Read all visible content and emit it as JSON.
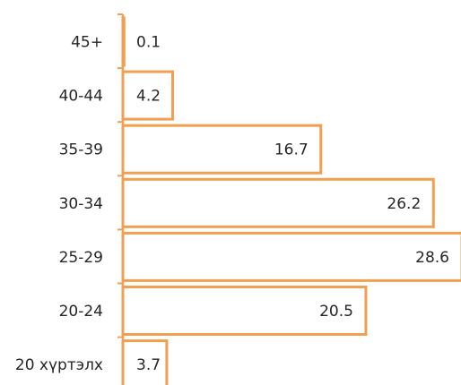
{
  "chart_data": {
    "type": "bar",
    "orientation": "horizontal",
    "categories": [
      "45+",
      "40-44",
      "35-39",
      "30-34",
      "25-29",
      "20-24",
      "20 хүртэлх"
    ],
    "values": [
      0.1,
      4.2,
      16.7,
      26.2,
      28.6,
      20.5,
      3.7
    ],
    "value_labels": [
      "0.1",
      "4.2",
      "16.7",
      "26.2",
      "28.6",
      "20.5",
      "3.7"
    ],
    "title": "",
    "xlabel": "",
    "ylabel": "",
    "xlim": [
      0,
      28.6
    ],
    "grid": false,
    "legend": "none",
    "bar_fill": "#ffffff",
    "bar_stroke": "#f0a050",
    "axis_color": "#f0a050"
  }
}
